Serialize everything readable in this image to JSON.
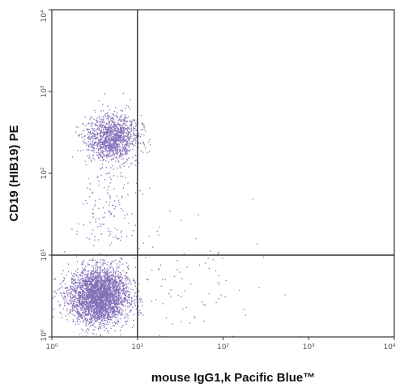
{
  "chart_data": {
    "type": "scatter",
    "subtype": "flow-cytometry-dot-plot",
    "xlabel": "mouse IgG1,k Pacific Blue™",
    "ylabel": "CD19 (HIB19) PE",
    "x_scale": "log",
    "y_scale": "log",
    "xlim": [
      1,
      10000
    ],
    "ylim": [
      1,
      10000
    ],
    "x_ticks": [
      {
        "value": 1,
        "label": "10⁰"
      },
      {
        "value": 10,
        "label": "10¹"
      },
      {
        "value": 100,
        "label": "10²"
      },
      {
        "value": 1000,
        "label": "10³"
      },
      {
        "value": 10000,
        "label": "10⁴"
      }
    ],
    "y_ticks": [
      {
        "value": 1,
        "label": "10⁰"
      },
      {
        "value": 10,
        "label": "10¹"
      },
      {
        "value": 100,
        "label": "10²"
      },
      {
        "value": 1000,
        "label": "10³"
      },
      {
        "value": 10000,
        "label": "10⁴"
      }
    ],
    "quadrant_gates": {
      "x": 10,
      "y": 10
    },
    "grid": false,
    "point_color": "#5a3fa0",
    "populations": [
      {
        "center_x": 3.5,
        "center_y": 3.2,
        "spread_x_decades": 0.17,
        "spread_y_decades": 0.17,
        "approx_events": 6000
      },
      {
        "center_x": 5.0,
        "center_y": 280,
        "spread_x_decades": 0.15,
        "spread_y_decades": 0.14,
        "approx_events": 1300
      },
      {
        "center_x": 4.5,
        "center_y": 40,
        "spread_x_decades": 0.16,
        "spread_y_decades": 0.3,
        "approx_events": 150
      },
      {
        "center_x": 40,
        "center_y": 4,
        "spread_x_decades": 0.5,
        "spread_y_decades": 0.4,
        "approx_events": 90
      }
    ]
  }
}
